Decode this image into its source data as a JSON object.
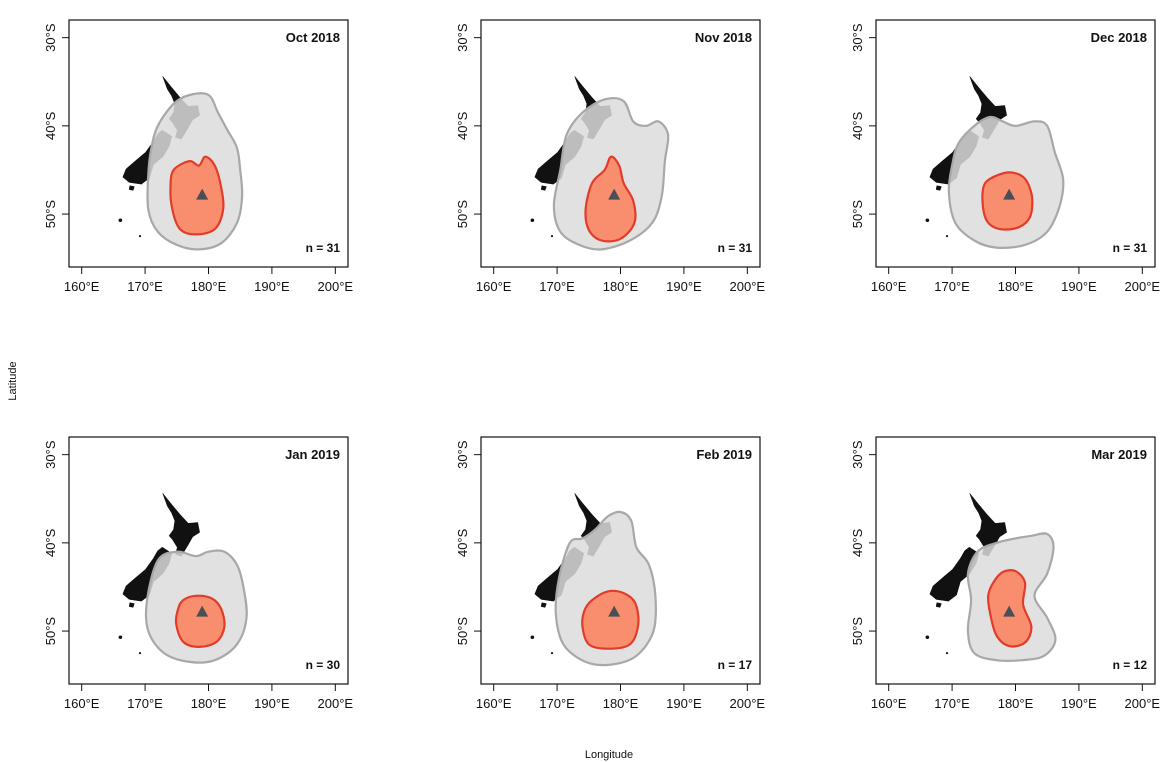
{
  "figure": {
    "xlabel": "Longitude",
    "ylabel": "Latitude",
    "x_ticks": [
      160,
      170,
      180,
      190,
      200
    ],
    "x_tick_labels": [
      "160°E",
      "170°E",
      "180°E",
      "190°E",
      "200°E"
    ],
    "y_ticks": [
      -30,
      -40,
      -50
    ],
    "y_tick_labels": [
      "30°S",
      "40°S",
      "50°S"
    ],
    "xlim": [
      158,
      202
    ],
    "ylim": [
      -56,
      -28
    ],
    "colors": {
      "land": "#111111",
      "range_fill": "#dcdcdc",
      "range_stroke": "#a8a8a8",
      "core_fill": "#f98e6e",
      "core_stroke": "#e23b2a",
      "colony_marker": "#4a4e55"
    }
  },
  "chart_data": {
    "type": "map",
    "colony": {
      "lon": 179,
      "lat": -47.8,
      "marker": "triangle"
    },
    "panels": [
      {
        "title": "Oct 2018",
        "n_label": "n = 31",
        "range": [
          [
            172,
            -40
          ],
          [
            174.5,
            -37.5
          ],
          [
            177,
            -36.5
          ],
          [
            180,
            -36.5
          ],
          [
            181.5,
            -38.5
          ],
          [
            183,
            -40.5
          ],
          [
            184.5,
            -42.5
          ],
          [
            185,
            -45
          ],
          [
            185.3,
            -48
          ],
          [
            184.5,
            -51
          ],
          [
            182,
            -53.3
          ],
          [
            178.5,
            -54
          ],
          [
            175,
            -53.5
          ],
          [
            172,
            -52
          ],
          [
            170.5,
            -49.5
          ],
          [
            170.5,
            -45.5
          ],
          [
            171,
            -42.5
          ]
        ],
        "core": [
          [
            174.5,
            -45
          ],
          [
            177,
            -44
          ],
          [
            178.5,
            -44.5
          ],
          [
            179.5,
            -43.5
          ],
          [
            181,
            -44.5
          ],
          [
            182,
            -47
          ],
          [
            182.3,
            -49.5
          ],
          [
            181,
            -51.7
          ],
          [
            178,
            -52.3
          ],
          [
            175.5,
            -51.7
          ],
          [
            174.3,
            -49.5
          ],
          [
            174,
            -47
          ]
        ]
      },
      {
        "title": "Nov 2018",
        "n_label": "n = 31",
        "range": [
          [
            171.5,
            -41
          ],
          [
            174,
            -38.5
          ],
          [
            177.5,
            -37
          ],
          [
            180.5,
            -37.2
          ],
          [
            182,
            -39.5
          ],
          [
            184,
            -40
          ],
          [
            186,
            -39.5
          ],
          [
            187.5,
            -41
          ],
          [
            187,
            -44
          ],
          [
            186.5,
            -48
          ],
          [
            185,
            -51
          ],
          [
            181.5,
            -53
          ],
          [
            177,
            -54
          ],
          [
            173.5,
            -53.5
          ],
          [
            170.5,
            -52
          ],
          [
            169.5,
            -49
          ],
          [
            170.5,
            -45
          ]
        ],
        "core": [
          [
            175.5,
            -46.5
          ],
          [
            177.5,
            -45
          ],
          [
            178.5,
            -43.5
          ],
          [
            179.8,
            -44.5
          ],
          [
            180.5,
            -46.5
          ],
          [
            182,
            -48.5
          ],
          [
            182.2,
            -51
          ],
          [
            180,
            -52.8
          ],
          [
            177,
            -53
          ],
          [
            175,
            -51.8
          ],
          [
            174.5,
            -49.5
          ]
        ]
      },
      {
        "title": "Dec 2018",
        "n_label": "n = 31",
        "range": [
          [
            171,
            -42
          ],
          [
            173.5,
            -40
          ],
          [
            176,
            -39
          ],
          [
            178,
            -39.5
          ],
          [
            180,
            -40
          ],
          [
            183,
            -39.5
          ],
          [
            185,
            -40
          ],
          [
            186.2,
            -43
          ],
          [
            187.5,
            -46
          ],
          [
            187,
            -49
          ],
          [
            185,
            -52
          ],
          [
            181.5,
            -53.5
          ],
          [
            177,
            -53.8
          ],
          [
            173.5,
            -53
          ],
          [
            170.5,
            -51
          ],
          [
            169.5,
            -47.5
          ],
          [
            170,
            -44.5
          ]
        ],
        "core": [
          [
            175.2,
            -46.5
          ],
          [
            177.5,
            -45.5
          ],
          [
            179.5,
            -45.3
          ],
          [
            181.5,
            -46
          ],
          [
            182.6,
            -48
          ],
          [
            182.3,
            -50.3
          ],
          [
            180.5,
            -51.5
          ],
          [
            177.5,
            -51.7
          ],
          [
            175.5,
            -50.8
          ],
          [
            174.8,
            -48.5
          ]
        ]
      },
      {
        "title": "Jan 2019",
        "n_label": "n = 30",
        "range": [
          [
            172,
            -42
          ],
          [
            175,
            -41
          ],
          [
            178,
            -41.5
          ],
          [
            180,
            -41
          ],
          [
            182.5,
            -41
          ],
          [
            184.5,
            -42.5
          ],
          [
            185.5,
            -45
          ],
          [
            186,
            -48.5
          ],
          [
            184.5,
            -51.5
          ],
          [
            181,
            -53.3
          ],
          [
            177,
            -53.5
          ],
          [
            173,
            -52.5
          ],
          [
            170.5,
            -50
          ],
          [
            170.3,
            -46.5
          ]
        ],
        "core": [
          [
            176,
            -46.5
          ],
          [
            178,
            -46
          ],
          [
            180.5,
            -46.3
          ],
          [
            182,
            -47.5
          ],
          [
            182.5,
            -49.5
          ],
          [
            181.3,
            -51.2
          ],
          [
            178.5,
            -51.8
          ],
          [
            176,
            -51.2
          ],
          [
            174.9,
            -49.2
          ],
          [
            175.2,
            -47.5
          ]
        ]
      },
      {
        "title": "Feb 2019",
        "n_label": "n = 17",
        "range": [
          [
            172,
            -40
          ],
          [
            174,
            -39.5
          ],
          [
            176,
            -38.5
          ],
          [
            178,
            -37
          ],
          [
            180,
            -36.5
          ],
          [
            181.7,
            -37.5
          ],
          [
            182.5,
            -40.5
          ],
          [
            184.5,
            -42.5
          ],
          [
            185.5,
            -46
          ],
          [
            185.2,
            -50
          ],
          [
            182.5,
            -52.8
          ],
          [
            178.5,
            -53.8
          ],
          [
            174.5,
            -53.5
          ],
          [
            171,
            -51.5
          ],
          [
            169.8,
            -48
          ],
          [
            170.3,
            -44
          ]
        ],
        "core": [
          [
            175.5,
            -46.5
          ],
          [
            178,
            -45.5
          ],
          [
            180.5,
            -45.7
          ],
          [
            182.3,
            -46.8
          ],
          [
            182.8,
            -49.2
          ],
          [
            181.5,
            -51.5
          ],
          [
            178,
            -52
          ],
          [
            175,
            -51.5
          ],
          [
            174,
            -49.5
          ],
          [
            174.3,
            -47.7
          ]
        ]
      },
      {
        "title": "Mar 2019",
        "n_label": "n = 12",
        "range": [
          [
            174,
            -41
          ],
          [
            177,
            -40
          ],
          [
            180,
            -39.5
          ],
          [
            182.5,
            -39.2
          ],
          [
            185,
            -39
          ],
          [
            186,
            -40.5
          ],
          [
            185,
            -43.5
          ],
          [
            183,
            -46
          ],
          [
            185,
            -48.5
          ],
          [
            186.3,
            -51
          ],
          [
            184.5,
            -52.8
          ],
          [
            181,
            -53.3
          ],
          [
            177,
            -53.3
          ],
          [
            173.5,
            -52.5
          ],
          [
            172.5,
            -50
          ],
          [
            173,
            -46.5
          ],
          [
            172.5,
            -43.5
          ]
        ],
        "core": [
          [
            176.5,
            -44.5
          ],
          [
            178,
            -43.3
          ],
          [
            180,
            -43.2
          ],
          [
            181.5,
            -44.5
          ],
          [
            181.2,
            -47
          ],
          [
            182.5,
            -49.5
          ],
          [
            181.5,
            -51.3
          ],
          [
            179,
            -51.7
          ],
          [
            177,
            -50.5
          ],
          [
            176,
            -48
          ],
          [
            175.7,
            -46
          ]
        ]
      }
    ]
  }
}
